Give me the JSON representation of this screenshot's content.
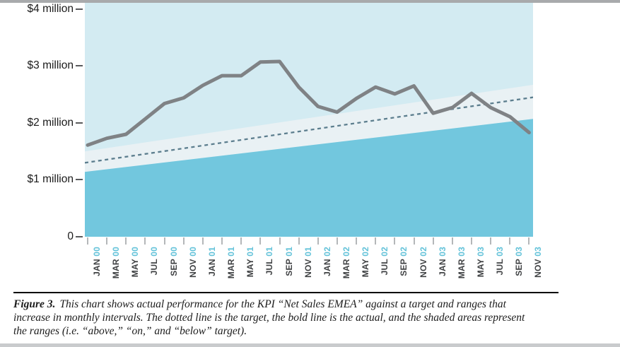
{
  "figure": {
    "caption": {
      "figure_label": "Figure 3.",
      "lines": [
        "This chart shows actual performance for the KPI “Net Sales EMEA” against a target and ranges that",
        "increase in monthly intervals. The dotted line is the target, the bold line is the actual, and the shaded areas represent",
        "the ranges (i.e. “above,” “on,” and “below” target)."
      ]
    }
  },
  "chart_data": {
    "type": "line",
    "kpi": "Net Sales EMEA",
    "unit": "$ million",
    "grid": false,
    "legend": "none",
    "ylim": [
      0,
      4.11
    ],
    "yaxis": {
      "labels": [
        {
          "text": "$4 million",
          "value": 4
        },
        {
          "text": "$3 million",
          "value": 3
        },
        {
          "text": "$2 million",
          "value": 2
        },
        {
          "text": "$1 million",
          "value": 1
        },
        {
          "text": "0",
          "value": 0
        }
      ]
    },
    "xaxis": {
      "labels": [
        {
          "month": "JAN",
          "year": "00"
        },
        {
          "month": "MAR",
          "year": "00"
        },
        {
          "month": "MAY",
          "year": "00"
        },
        {
          "month": "JUL",
          "year": "00"
        },
        {
          "month": "SEP",
          "year": "00"
        },
        {
          "month": "NOV",
          "year": "00"
        },
        {
          "month": "JAN",
          "year": "01"
        },
        {
          "month": "MAR",
          "year": "01"
        },
        {
          "month": "MAY",
          "year": "01"
        },
        {
          "month": "JUL",
          "year": "01"
        },
        {
          "month": "SEP",
          "year": "01"
        },
        {
          "month": "NOV",
          "year": "01"
        },
        {
          "month": "JAN",
          "year": "02"
        },
        {
          "month": "MAR",
          "year": "02"
        },
        {
          "month": "MAY",
          "year": "02"
        },
        {
          "month": "JUL",
          "year": "02"
        },
        {
          "month": "SEP",
          "year": "02"
        },
        {
          "month": "NOV",
          "year": "02"
        },
        {
          "month": "JAN",
          "year": "03"
        },
        {
          "month": "MAR",
          "year": "03"
        },
        {
          "month": "MAY",
          "year": "03"
        },
        {
          "month": "JUL",
          "year": "03"
        },
        {
          "month": "SEP",
          "year": "03"
        },
        {
          "month": "NOV",
          "year": "03"
        }
      ]
    },
    "series": [
      {
        "name": "actual",
        "style": "bold line",
        "color": "#7f8285",
        "values": [
          1.61,
          1.73,
          1.8,
          2.07,
          2.34,
          2.44,
          2.66,
          2.83,
          2.83,
          3.07,
          3.08,
          2.63,
          2.29,
          2.19,
          2.43,
          2.63,
          2.51,
          2.65,
          2.17,
          2.27,
          2.52,
          2.27,
          2.11,
          1.83
        ]
      },
      {
        "name": "target",
        "style": "dotted line",
        "color": "#5c7e8e",
        "start": 1.3,
        "end": 2.45
      }
    ],
    "ranges": {
      "above": {
        "label": "above target",
        "color": "#d3ebf2"
      },
      "on": {
        "label": "on target",
        "color": "#e9f1f4",
        "start_top": 1.5,
        "end_top": 2.67,
        "start_bottom": 1.14,
        "end_bottom": 2.07
      },
      "below": {
        "label": "below target",
        "color": "#72c7de"
      }
    }
  },
  "colors": {
    "top_border": "#a8aaac",
    "bottom_border": "#c9cbcd",
    "tick_x": "#b4b7b9",
    "tick_y": "#595a5c",
    "month_label": "#3f4143",
    "year_label": "#62c2d9",
    "y_label": "#1a1a1a",
    "caption_text": "#1c1c1c"
  }
}
